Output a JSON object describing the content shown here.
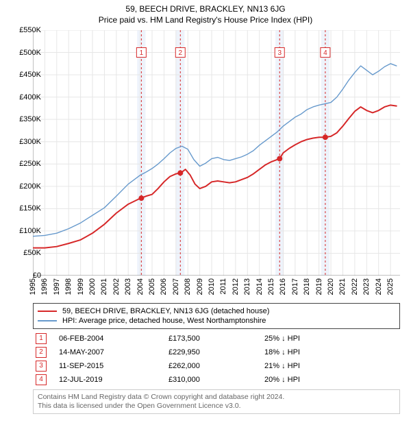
{
  "title": "59, BEECH DRIVE, BRACKLEY, NN13 6JG",
  "subtitle": "Price paid vs. HM Land Registry's House Price Index (HPI)",
  "chart": {
    "background_color": "#ffffff",
    "grid_color": "#e6e6e6",
    "axis_color": "#808080",
    "ylim": [
      0,
      550000
    ],
    "ytick_step": 50000,
    "ytick_labels": [
      "£0",
      "£50K",
      "£100K",
      "£150K",
      "£200K",
      "£250K",
      "£300K",
      "£350K",
      "£400K",
      "£450K",
      "£500K",
      "£550K"
    ],
    "xlim": [
      1995,
      2025.8
    ],
    "xticks": [
      1995,
      1996,
      1997,
      1998,
      1999,
      2000,
      2001,
      2002,
      2003,
      2004,
      2005,
      2006,
      2007,
      2008,
      2009,
      2010,
      2011,
      2012,
      2013,
      2014,
      2015,
      2016,
      2017,
      2018,
      2019,
      2020,
      2021,
      2022,
      2023,
      2024,
      2025
    ],
    "price_line": {
      "color": "#d62728",
      "width": 2,
      "points": [
        [
          1995.0,
          62000
        ],
        [
          1996.0,
          62000
        ],
        [
          1997.0,
          65000
        ],
        [
          1998.0,
          72000
        ],
        [
          1999.0,
          80000
        ],
        [
          2000.0,
          95000
        ],
        [
          2001.0,
          115000
        ],
        [
          2002.0,
          140000
        ],
        [
          2003.0,
          160000
        ],
        [
          2004.0,
          173000
        ],
        [
          2004.5,
          178000
        ],
        [
          2005.0,
          182000
        ],
        [
          2005.5,
          195000
        ],
        [
          2006.0,
          210000
        ],
        [
          2006.5,
          222000
        ],
        [
          2007.0,
          228000
        ],
        [
          2007.4,
          229950
        ],
        [
          2007.8,
          238000
        ],
        [
          2008.2,
          225000
        ],
        [
          2008.6,
          205000
        ],
        [
          2009.0,
          195000
        ],
        [
          2009.5,
          200000
        ],
        [
          2010.0,
          210000
        ],
        [
          2010.5,
          212000
        ],
        [
          2011.0,
          210000
        ],
        [
          2011.5,
          208000
        ],
        [
          2012.0,
          210000
        ],
        [
          2012.5,
          215000
        ],
        [
          2013.0,
          220000
        ],
        [
          2013.5,
          228000
        ],
        [
          2014.0,
          238000
        ],
        [
          2014.5,
          248000
        ],
        [
          2015.0,
          255000
        ],
        [
          2015.7,
          262000
        ],
        [
          2016.0,
          275000
        ],
        [
          2016.5,
          285000
        ],
        [
          2017.0,
          293000
        ],
        [
          2017.5,
          300000
        ],
        [
          2018.0,
          305000
        ],
        [
          2018.5,
          308000
        ],
        [
          2019.0,
          310000
        ],
        [
          2019.5,
          310000
        ],
        [
          2020.0,
          312000
        ],
        [
          2020.5,
          320000
        ],
        [
          2021.0,
          335000
        ],
        [
          2021.5,
          352000
        ],
        [
          2022.0,
          368000
        ],
        [
          2022.5,
          378000
        ],
        [
          2023.0,
          370000
        ],
        [
          2023.5,
          365000
        ],
        [
          2024.0,
          370000
        ],
        [
          2024.5,
          378000
        ],
        [
          2025.0,
          382000
        ],
        [
          2025.5,
          380000
        ]
      ]
    },
    "hpi_line": {
      "color": "#6699cc",
      "width": 1.4,
      "points": [
        [
          1995.0,
          88000
        ],
        [
          1996.0,
          90000
        ],
        [
          1997.0,
          95000
        ],
        [
          1998.0,
          105000
        ],
        [
          1999.0,
          118000
        ],
        [
          2000.0,
          135000
        ],
        [
          2001.0,
          152000
        ],
        [
          2002.0,
          178000
        ],
        [
          2003.0,
          205000
        ],
        [
          2004.0,
          225000
        ],
        [
          2004.5,
          232000
        ],
        [
          2005.0,
          240000
        ],
        [
          2005.5,
          250000
        ],
        [
          2006.0,
          262000
        ],
        [
          2006.5,
          275000
        ],
        [
          2007.0,
          285000
        ],
        [
          2007.5,
          290000
        ],
        [
          2008.0,
          283000
        ],
        [
          2008.5,
          260000
        ],
        [
          2009.0,
          245000
        ],
        [
          2009.5,
          252000
        ],
        [
          2010.0,
          262000
        ],
        [
          2010.5,
          265000
        ],
        [
          2011.0,
          260000
        ],
        [
          2011.5,
          258000
        ],
        [
          2012.0,
          262000
        ],
        [
          2012.5,
          266000
        ],
        [
          2013.0,
          272000
        ],
        [
          2013.5,
          280000
        ],
        [
          2014.0,
          292000
        ],
        [
          2014.5,
          302000
        ],
        [
          2015.0,
          312000
        ],
        [
          2015.5,
          322000
        ],
        [
          2016.0,
          335000
        ],
        [
          2016.5,
          345000
        ],
        [
          2017.0,
          355000
        ],
        [
          2017.5,
          362000
        ],
        [
          2018.0,
          372000
        ],
        [
          2018.5,
          378000
        ],
        [
          2019.0,
          382000
        ],
        [
          2019.5,
          385000
        ],
        [
          2020.0,
          388000
        ],
        [
          2020.5,
          400000
        ],
        [
          2021.0,
          418000
        ],
        [
          2021.5,
          438000
        ],
        [
          2022.0,
          455000
        ],
        [
          2022.5,
          470000
        ],
        [
          2023.0,
          460000
        ],
        [
          2023.5,
          450000
        ],
        [
          2024.0,
          458000
        ],
        [
          2024.5,
          468000
        ],
        [
          2025.0,
          475000
        ],
        [
          2025.5,
          470000
        ]
      ]
    },
    "sale_markers": {
      "color": "#d62728",
      "radius": 4,
      "box_size": 14,
      "box_border": "#d62728",
      "box_bg": "#ffffff",
      "label_fontsize": 10,
      "label_color": "#d62728",
      "label_y": 500000,
      "items": [
        {
          "n": "1",
          "x": 2004.1,
          "y": 173500
        },
        {
          "n": "2",
          "x": 2007.37,
          "y": 229950
        },
        {
          "n": "3",
          "x": 2015.7,
          "y": 262000
        },
        {
          "n": "4",
          "x": 2019.53,
          "y": 310000
        }
      ]
    },
    "event_line": {
      "color": "#d62728",
      "dash": "3,3",
      "width": 1
    },
    "gap_band": {
      "color": "#eef3fb",
      "x_pad": 0.35
    }
  },
  "legend": {
    "border_color": "#444444",
    "items": [
      {
        "color": "#d62728",
        "label": "59, BEECH DRIVE, BRACKLEY, NN13 6JG (detached house)",
        "width": 2
      },
      {
        "color": "#6699cc",
        "label": "HPI: Average price, detached house, West Northamptonshire",
        "width": 1.4
      }
    ]
  },
  "sales": [
    {
      "n": "1",
      "date": "06-FEB-2004",
      "price": "£173,500",
      "delta": "25% ↓ HPI"
    },
    {
      "n": "2",
      "date": "14-MAY-2007",
      "price": "£229,950",
      "delta": "18% ↓ HPI"
    },
    {
      "n": "3",
      "date": "11-SEP-2015",
      "price": "£262,000",
      "delta": "21% ↓ HPI"
    },
    {
      "n": "4",
      "date": "12-JUL-2019",
      "price": "£310,000",
      "delta": "20% ↓ HPI"
    }
  ],
  "footer": {
    "line1": "Contains HM Land Registry data © Crown copyright and database right 2024.",
    "line2": "This data is licensed under the Open Government Licence v3.0.",
    "border_color": "#cccccc",
    "text_color": "#666666"
  }
}
